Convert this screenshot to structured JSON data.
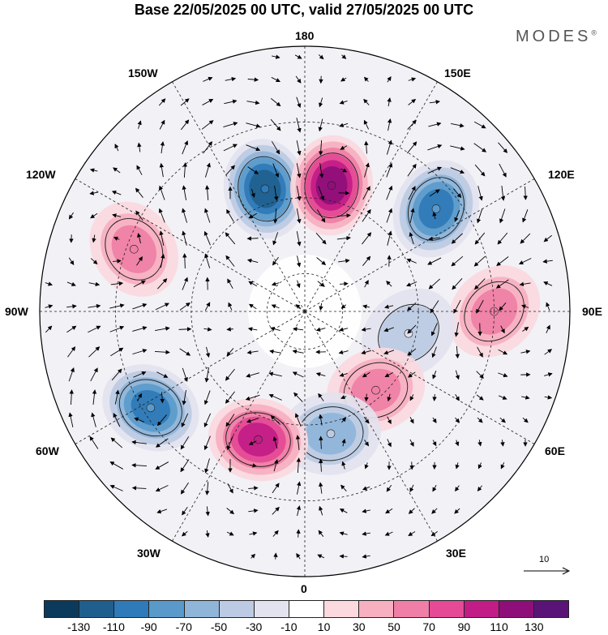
{
  "title": "Base 22/05/2025 00 UTC, valid 27/05/2025 00 UTC",
  "brand": "MODES",
  "brand_mark": "®",
  "longitude_labels": {
    "n": "180",
    "s": "0",
    "w": "90W",
    "e": "90E",
    "nw1": "150W",
    "nw2": "120W",
    "sw1": "60W",
    "sw2": "30W",
    "ne1": "150E",
    "ne2": "120E",
    "se1": "60E",
    "se2": "30E"
  },
  "reference_vector": {
    "value": "10"
  },
  "colorbar": {
    "colors": [
      "#0c3a5c",
      "#1e5f8e",
      "#2f7ab8",
      "#5a9acb",
      "#8fb5d9",
      "#bccbe3",
      "#e3e3ef",
      "#ffffff",
      "#fbd9df",
      "#f6b0c0",
      "#ef7fa6",
      "#e44a95",
      "#c21c86",
      "#8e0f7a",
      "#5a1477"
    ],
    "ticks": [
      "-130",
      "-110",
      "-90",
      "-70",
      "-50",
      "-30",
      "-10",
      "10",
      "30",
      "50",
      "70",
      "90",
      "110",
      "130"
    ]
  },
  "anomalies": [
    {
      "id": "blob-150w",
      "value": -110,
      "color": "#2f7ab8",
      "lon": -162,
      "lat": 56
    },
    {
      "id": "blob-170e",
      "value": 110,
      "color": "#8e0f7a",
      "lon": 168,
      "lat": 56
    },
    {
      "id": "blob-125e",
      "value": -90,
      "color": "#1e5f8e",
      "lon": 128,
      "lat": 46
    },
    {
      "id": "blob-95w",
      "value": 50,
      "color": "#ef7fa6",
      "lon": -110,
      "lat": 42
    },
    {
      "id": "blob-90e",
      "value": 60,
      "color": "#ef7fa6",
      "lon": 90,
      "lat": 40
    },
    {
      "id": "blob-70e",
      "value": -30,
      "color": "#bccbe3",
      "lon": 78,
      "lat": 62
    },
    {
      "id": "blob-40e",
      "value": 50,
      "color": "#f6b0c0",
      "lon": 42,
      "lat": 62
    },
    {
      "id": "blob-10e",
      "value": -50,
      "color": "#8fb5d9",
      "lon": 12,
      "lat": 57
    },
    {
      "id": "blob-35w",
      "value": 90,
      "color": "#c21c86",
      "lon": -20,
      "lat": 54
    },
    {
      "id": "blob-60w",
      "value": -90,
      "color": "#2f7ab8",
      "lon": -58,
      "lat": 42
    }
  ]
}
